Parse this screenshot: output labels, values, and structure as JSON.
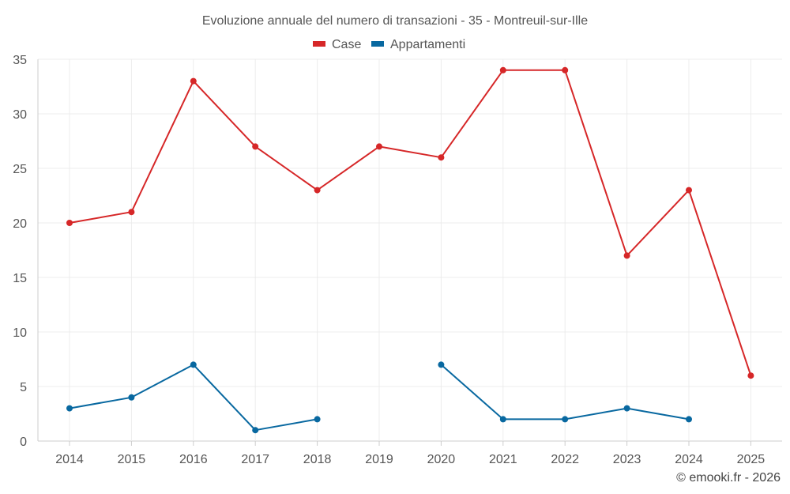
{
  "chart_data": {
    "type": "line",
    "title": "Evoluzione annuale del numero di transazioni - 35 - Montreuil-sur-Ille",
    "categories": [
      "2014",
      "2015",
      "2016",
      "2017",
      "2018",
      "2019",
      "2020",
      "2021",
      "2022",
      "2023",
      "2024",
      "2025"
    ],
    "ylim": [
      0,
      35
    ],
    "yticks": [
      0,
      5,
      10,
      15,
      20,
      25,
      30,
      35
    ],
    "grid": true,
    "legend_position": "top-center",
    "series": [
      {
        "name": "Case",
        "color": "#d62728",
        "values": [
          20,
          21,
          33,
          27,
          23,
          27,
          26,
          34,
          34,
          17,
          23,
          6
        ]
      },
      {
        "name": "Appartamenti",
        "color": "#0868a0",
        "values": [
          3,
          4,
          7,
          1,
          2,
          null,
          7,
          2,
          2,
          3,
          2,
          null
        ]
      }
    ],
    "credit": "© emooki.fr - 2026"
  }
}
